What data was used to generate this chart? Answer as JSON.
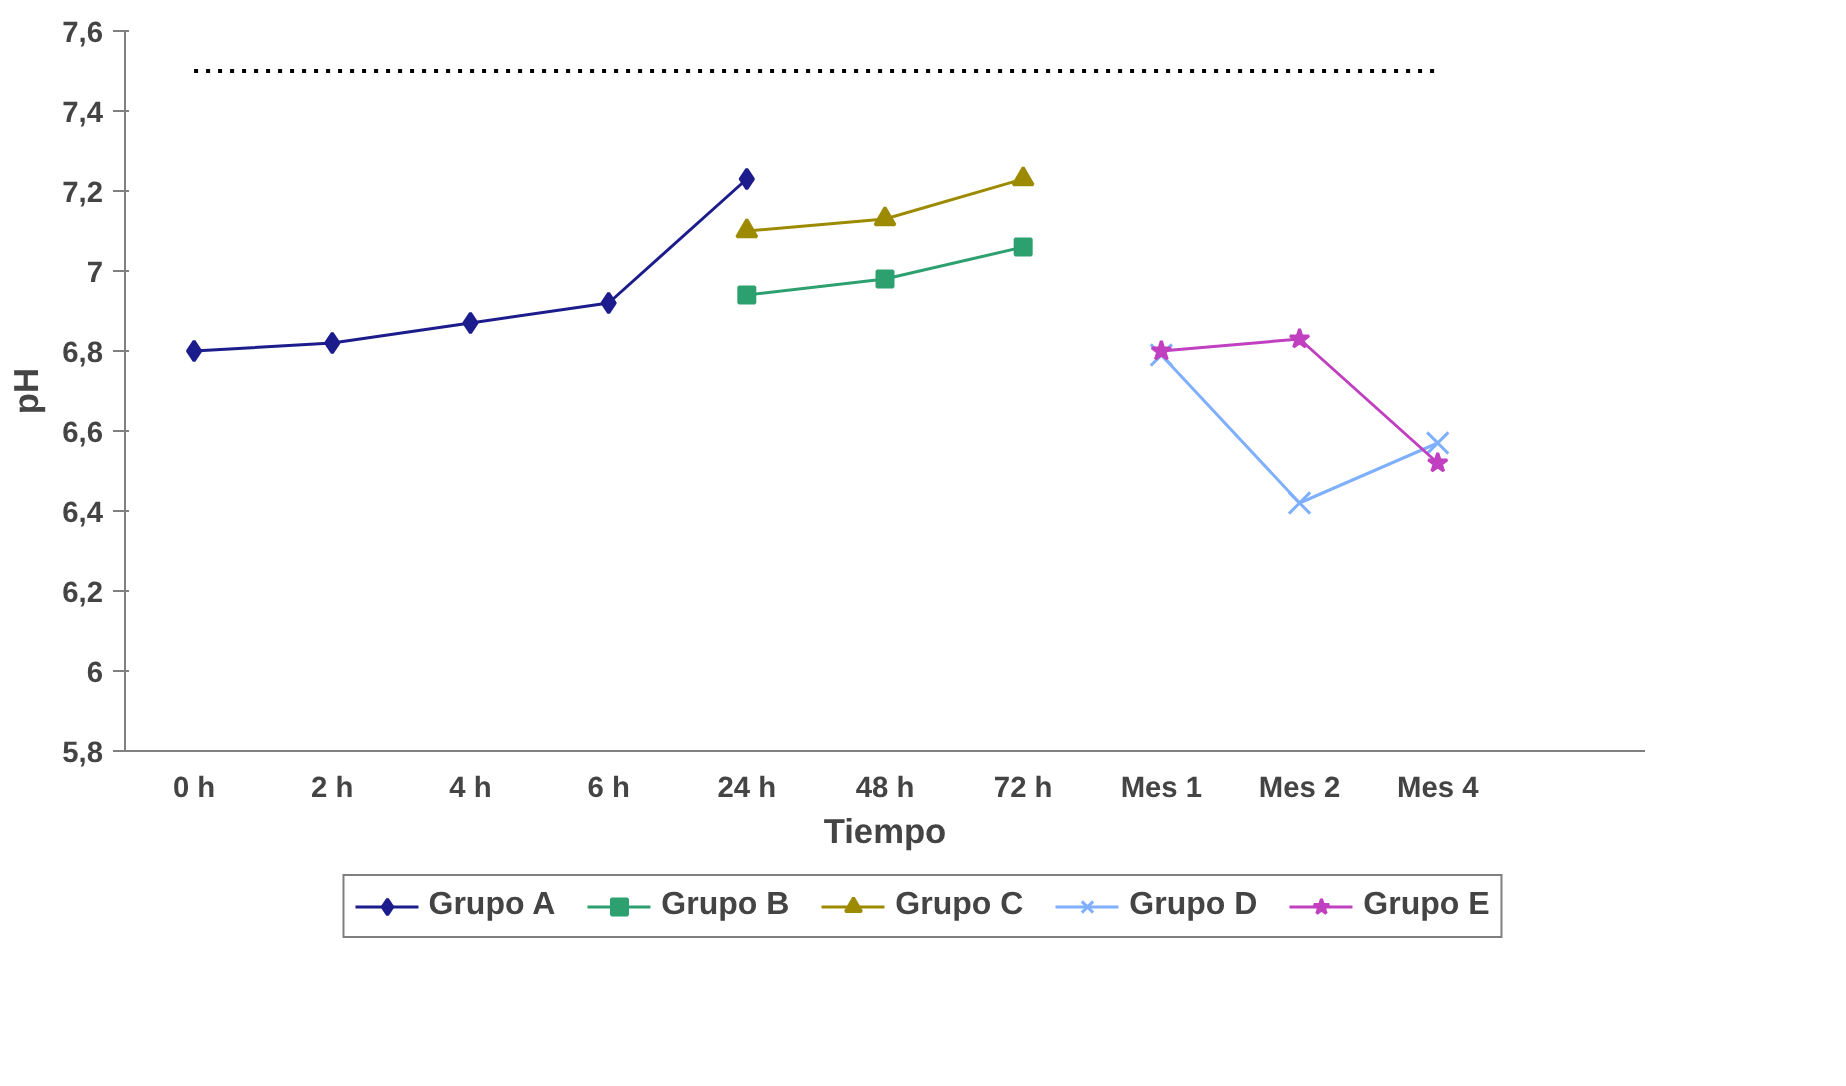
{
  "chart_data": {
    "type": "line",
    "xlabel": "Tiempo",
    "ylabel": "pH",
    "categories": [
      "0 h",
      "2 h",
      "4 h",
      "6 h",
      "24 h",
      "48 h",
      "72 h",
      "Mes 1",
      "Mes 2",
      "Mes 4"
    ],
    "ylim": [
      5.8,
      7.6
    ],
    "yticks": [
      {
        "value": 5.8,
        "label": "5,8"
      },
      {
        "value": 6.0,
        "label": "6"
      },
      {
        "value": 6.2,
        "label": "6,2"
      },
      {
        "value": 6.4,
        "label": "6,4"
      },
      {
        "value": 6.6,
        "label": "6,6"
      },
      {
        "value": 6.8,
        "label": "6,8"
      },
      {
        "value": 7.0,
        "label": "7"
      },
      {
        "value": 7.2,
        "label": "7,2"
      },
      {
        "value": 7.4,
        "label": "7,4"
      },
      {
        "value": 7.6,
        "label": "7,6"
      }
    ],
    "grid": false,
    "legend": "bottom",
    "series": [
      {
        "name": "Grupo A",
        "color": "#1c1c8c",
        "marker": "diamond",
        "values": [
          6.8,
          6.82,
          6.87,
          6.92,
          7.23,
          null,
          null,
          null,
          null,
          null
        ]
      },
      {
        "name": "Grupo B",
        "color": "#2ca06e",
        "marker": "square",
        "values": [
          null,
          null,
          null,
          null,
          6.94,
          6.98,
          7.06,
          null,
          null,
          null
        ]
      },
      {
        "name": "Grupo C",
        "color": "#9c8a00",
        "marker": "triangle",
        "values": [
          null,
          null,
          null,
          null,
          7.1,
          7.13,
          7.23,
          null,
          null,
          null
        ]
      },
      {
        "name": "Grupo D",
        "color": "#7fb0ff",
        "marker": "cross",
        "values": [
          null,
          null,
          null,
          null,
          null,
          null,
          null,
          6.79,
          6.42,
          6.57
        ]
      },
      {
        "name": "Grupo E",
        "color": "#c040c0",
        "marker": "star",
        "values": [
          null,
          null,
          null,
          null,
          null,
          null,
          null,
          6.8,
          6.83,
          6.52
        ]
      },
      {
        "color": "#000000",
        "marker": "none",
        "line_style": "dotted",
        "values": [
          7.5,
          7.5,
          7.5,
          7.5,
          7.5,
          7.5,
          7.5,
          7.5,
          7.5,
          7.5
        ]
      }
    ]
  }
}
